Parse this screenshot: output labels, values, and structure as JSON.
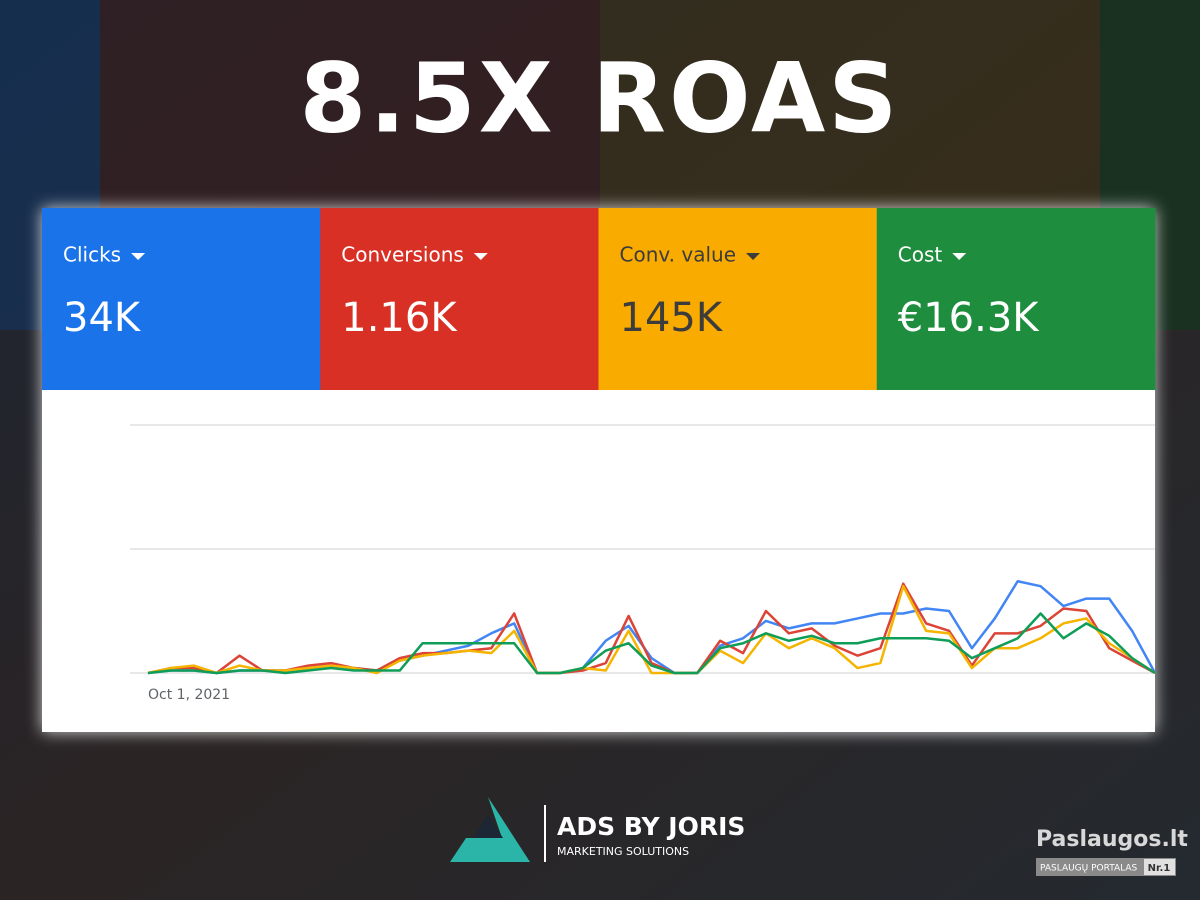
{
  "header": {
    "title": "8.5X ROAS"
  },
  "cards": [
    {
      "label": "Clicks",
      "value": "34K",
      "color": "#1a73e8",
      "text_color": "#ffffff"
    },
    {
      "label": "Conversions",
      "value": "1.16K",
      "color": "#d93025",
      "text_color": "#ffffff"
    },
    {
      "label": "Conv. value",
      "value": "145K",
      "color": "#f9ab00",
      "text_color": "#3c3c3c"
    },
    {
      "label": "Cost",
      "value": "€16.3K",
      "color": "#1e8e3e",
      "text_color": "#ffffff"
    }
  ],
  "chart_data": {
    "type": "line",
    "categories": [
      "Oct 1, 2021",
      null,
      null,
      null,
      null,
      null,
      null,
      null,
      null,
      null,
      null,
      null,
      null,
      null,
      null,
      null,
      null,
      null,
      null,
      null,
      null,
      null,
      null,
      null,
      null,
      null,
      null,
      null,
      null,
      null,
      null,
      null,
      null,
      null,
      null,
      null,
      null,
      null,
      null,
      null,
      null,
      null,
      null,
      null,
      null
    ],
    "ylim": [
      0,
      100
    ],
    "yticks": [
      0,
      50,
      100
    ],
    "grid": true,
    "series": [
      {
        "name": "Clicks",
        "color": "#4285f4",
        "values": [
          0,
          1,
          1,
          0,
          1,
          1,
          1,
          2,
          3,
          2,
          1,
          5,
          7,
          9,
          11,
          16,
          20,
          0,
          0,
          2,
          13,
          19,
          6,
          0,
          0,
          11,
          14,
          21,
          18,
          20,
          20,
          22,
          24,
          24,
          26,
          25,
          10,
          22,
          37,
          35,
          27,
          30,
          30,
          17,
          0
        ]
      },
      {
        "name": "Conversions",
        "color": "#db4437",
        "values": [
          0,
          2,
          2,
          0,
          7,
          1,
          1,
          3,
          4,
          2,
          1,
          6,
          8,
          8,
          9,
          10,
          24,
          0,
          0,
          1,
          4,
          23,
          4,
          0,
          0,
          13,
          8,
          25,
          16,
          18,
          11,
          7,
          10,
          36,
          20,
          17,
          3,
          16,
          16,
          19,
          26,
          25,
          10,
          5,
          0
        ]
      },
      {
        "name": "Conv. value",
        "color": "#f4b400",
        "values": [
          0,
          2,
          3,
          0,
          3,
          1,
          1,
          2,
          3,
          2,
          0,
          5,
          7,
          8,
          9,
          8,
          17,
          0,
          0,
          2,
          1,
          17,
          0,
          0,
          0,
          9,
          4,
          16,
          10,
          14,
          10,
          2,
          4,
          35,
          17,
          16,
          2,
          10,
          10,
          14,
          20,
          22,
          12,
          6,
          0
        ]
      },
      {
        "name": "Cost",
        "color": "#0f9d58",
        "values": [
          0,
          1,
          1,
          0,
          1,
          1,
          0,
          1,
          2,
          1,
          1,
          1,
          12,
          12,
          12,
          12,
          12,
          0,
          0,
          2,
          9,
          12,
          3,
          0,
          0,
          10,
          12,
          16,
          13,
          15,
          12,
          12,
          14,
          14,
          14,
          13,
          6,
          10,
          14,
          24,
          14,
          20,
          15,
          6,
          0
        ]
      }
    ]
  },
  "footer": {
    "brand": "ADS BY JORIS",
    "tagline": "MARKETING SOLUTIONS",
    "portal": "Paslaugos.lt",
    "portal_sub": "PASLAUGŲ PORTALAS",
    "portal_badge": "Nr.1"
  }
}
